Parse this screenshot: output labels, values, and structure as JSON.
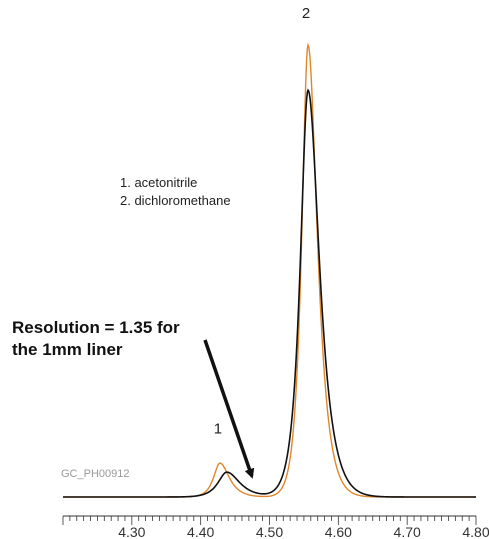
{
  "chart_data": {
    "type": "line",
    "x_ticks": [
      4.3,
      4.4,
      4.5,
      4.6,
      4.7,
      4.8
    ],
    "tick_labels": [
      "4.30",
      "4.40",
      "4.50",
      "4.60",
      "4.70",
      "4.80"
    ],
    "xlim": [
      4.2,
      4.8
    ],
    "ylim": [
      0,
      1.0
    ],
    "grid": false,
    "series": [
      {
        "color": "#e0862a",
        "peaks": [
          {
            "center": 4.428,
            "height": 0.075,
            "width": 0.018
          },
          {
            "center": 4.556,
            "height": 1.0,
            "width": 0.018
          }
        ]
      },
      {
        "color": "#111111",
        "peaks": [
          {
            "center": 4.438,
            "height": 0.055,
            "width": 0.025
          },
          {
            "center": 4.556,
            "height": 0.9,
            "width": 0.022
          }
        ]
      }
    ],
    "peak_labels": [
      {
        "text": "1",
        "x": 4.428,
        "y": 0.14
      },
      {
        "text": "2",
        "x": 4.556,
        "y": 1.06
      }
    ],
    "legend": [
      "1. acetonitrile",
      "2. dichloromethane"
    ],
    "sample_code": "GC_PH00912",
    "annotation": {
      "lines": [
        "Resolution = 1.35 for",
        "the 1mm liner"
      ],
      "points_to": {
        "x": 4.48,
        "y": 0.02
      }
    }
  }
}
